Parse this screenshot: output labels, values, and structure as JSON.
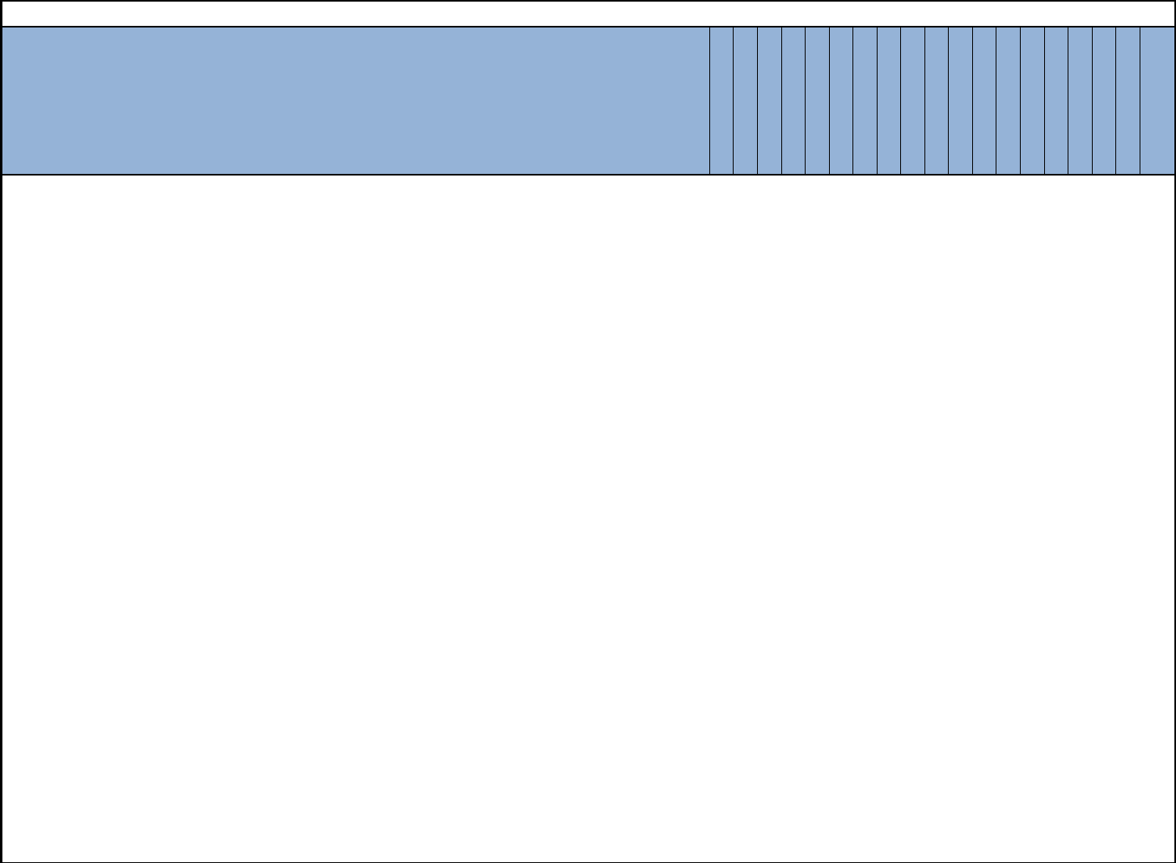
{
  "sheet": {
    "header_fill_color": "#95b3d7",
    "grid_color": "#000000",
    "cell_fill_color": "#ffffff",
    "top_row": [],
    "header_row": [],
    "body_rows": []
  }
}
